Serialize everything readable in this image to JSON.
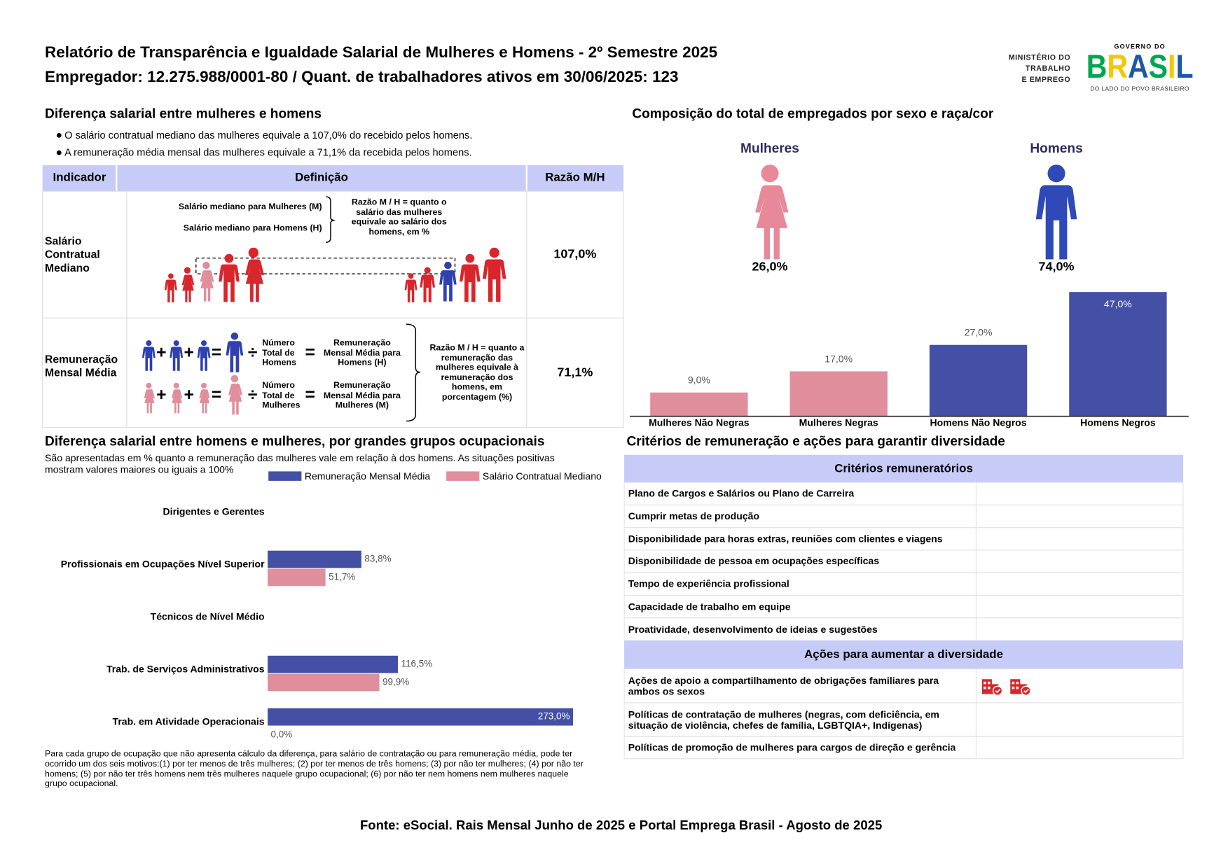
{
  "header": {
    "title": "Relatório de Transparência e Igualdade Salarial de Mulheres e Homens - 2º Semestre 2025",
    "subtitle": "Empregador: 12.275.988/0001-80 / Quant. de trabalhadores ativos em 30/06/2025: 123",
    "logo": {
      "ministry": [
        "MINISTÉRIO DO",
        "TRABALHO",
        "E EMPREGO"
      ],
      "government": "GOVERNO DO",
      "brand": "BRASIL",
      "tagline": "DO LADO DO POVO BRASILEIRO"
    }
  },
  "salary_gap": {
    "title": "Diferença salarial entre mulheres e homens",
    "bullets": [
      "O salário contratual mediano das mulheres equivale a 107,0% do recebido pelos homens.",
      "A remuneração média mensal das mulheres equivale a 71,1% da recebida pelos homens."
    ],
    "table": {
      "headers": [
        "Indicador",
        "Definição",
        "Razão M/H"
      ],
      "operators": {
        "plus": "+",
        "equals": "=",
        "divide": "÷"
      },
      "rows": [
        {
          "indicator": "Salário Contratual Mediano",
          "ratio": "107,0%",
          "definition": {
            "women": "Salário mediano para Mulheres (M)",
            "men": "Salário mediano para Homens (H)",
            "ratio_note": "Razão M / H = quanto o salário das mulheres equivale ao salário dos homens, em %"
          }
        },
        {
          "indicator": "Remuneração Mensal Média",
          "ratio": "71,1%",
          "definition": {
            "men_count": "Número Total de Homens",
            "men_result": "Remuneração Mensal Média para Homens (H)",
            "women_count": "Número Total de Mulheres",
            "women_result": "Remuneração Mensal Média para Mulheres (M)",
            "ratio_note": "Razão M / H = quanto a remuneração das mulheres equivale à remuneração dos homens, em porcentagem (%)"
          }
        }
      ]
    }
  },
  "composition": {
    "title": "Composição do total de empregados por sexo e raça/cor",
    "women": {
      "label": "Mulheres",
      "share": "26,0%"
    },
    "men": {
      "label": "Homens",
      "share": "74,0%"
    }
  },
  "occupational": {
    "title": "Diferença salarial entre homens e mulheres, por grandes grupos ocupacionais",
    "subtitle": "São apresentadas em % quanto a remuneração das mulheres vale em relação à dos homens. As situações positivas mostram valores maiores ou iguais a 100%",
    "note": "Para cada grupo de ocupação que não apresenta cálculo da diferença, para salário de contratação ou para remuneração média, pode ter ocorrido um dos seis motivos:(1) por ter menos de três mulheres; (2) por ter menos de três homens; (3) por não ter mulheres; (4) por não ter homens; (5) por não ter três homens nem três mulheres naquele grupo ocupacional; (6) por não ter nem homens nem mulheres naquele grupo ocupacional."
  },
  "criteria": {
    "title": "Critérios de remuneração e ações para garantir diversidade",
    "remuneration_header": "Critérios remuneratórios",
    "remuneration_items": [
      "Plano de Cargos e Salários ou Plano de Carreira",
      "Cumprir metas de produção",
      "Disponibilidade para horas extras, reuniões com clientes e viagens",
      "Disponibilidade de pessoa em ocupações específicas",
      "Tempo de experiência profissional",
      "Capacidade de trabalho em equipe",
      "Proatividade, desenvolvimento de ideias e sugestões"
    ],
    "diversity_header": "Ações para aumentar a diversidade",
    "diversity_items": [
      {
        "text": "Ações de apoio a compartilhamento de obrigações familiares para ambos os sexos",
        "icons": 2
      },
      {
        "text": "Políticas de contratação de mulheres (negras, com deficiência, em situação de violência, chefes de família, LGBTQIA+, Indígenas)",
        "icons": 0
      },
      {
        "text": "Políticas de promoção de mulheres para cargos de direção e gerência",
        "icons": 0
      }
    ]
  },
  "footer": {
    "source": "Fonte: eSocial. Rais Mensal Junho de 2025 e Portal Emprega Brasil - Agosto de 2025"
  },
  "chart_data": [
    {
      "type": "bar",
      "categories": [
        "Mulheres Não Negras",
        "Mulheres Negras",
        "Homens Não Negros",
        "Homens Negros"
      ],
      "values": [
        9.0,
        17.0,
        27.0,
        47.0
      ],
      "value_labels": [
        "9,0%",
        "17,0%",
        "27,0%",
        "47,0%"
      ],
      "colors": [
        "#e08e9c",
        "#e08e9c",
        "#4350a6",
        "#4350a6"
      ]
    },
    {
      "type": "hbar",
      "categories": [
        "Dirigentes e Gerentes",
        "Profissionais em Ocupações Nível Superior",
        "Técnicos de Nível Médio",
        "Trab. de Serviços Administrativos",
        "Trab. em Atividade Operacionais"
      ],
      "series": [
        {
          "name": "Remuneração Mensal Média",
          "color": "#4350a6",
          "values": [
            null,
            83.8,
            null,
            116.5,
            273.0
          ],
          "value_labels": [
            null,
            "83,8%",
            null,
            "116,5%",
            "273,0%"
          ]
        },
        {
          "name": "Salário Contratual Mediano",
          "color": "#e08e9c",
          "values": [
            null,
            51.7,
            null,
            99.9,
            0.0
          ],
          "value_labels": [
            null,
            "51,7%",
            null,
            "99,9%",
            "0,0%"
          ]
        }
      ],
      "legend": "top-right"
    }
  ]
}
